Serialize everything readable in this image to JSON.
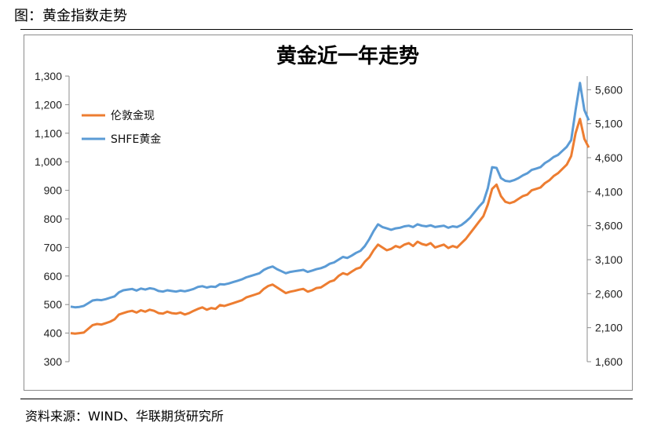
{
  "header": {
    "figure_title": "图：黄金指数走势"
  },
  "footer": {
    "source": "资料来源：WIND、华联期货研究所"
  },
  "colors": {
    "lbma": "#ed7d31",
    "shfe": "#5b9bd5",
    "axis": "#8c8c8c"
  },
  "chart_data": {
    "type": "line",
    "title": "黄金近一年走势",
    "xlabel": "",
    "ylabel_left": "",
    "ylabel_right": "",
    "grid": false,
    "legend_position": "top-left",
    "left_axis": {
      "ylim": [
        300,
        1300
      ],
      "ticks": [
        300,
        400,
        500,
        600,
        700,
        800,
        900,
        1000,
        1100,
        1200,
        1300
      ],
      "tick_labels": [
        "300",
        "400",
        "500",
        "600",
        "700",
        "800",
        "900",
        "1,000",
        "1,100",
        "1,200",
        "1,300"
      ]
    },
    "right_axis": {
      "ylim": [
        1600,
        5800
      ],
      "ticks": [
        1600,
        2100,
        2600,
        3100,
        3600,
        4100,
        4600,
        5100,
        5600
      ],
      "tick_labels": [
        "1,600",
        "2,100",
        "2,600",
        "3,100",
        "3,600",
        "4,100",
        "4,600",
        "5,100",
        "5,600"
      ]
    },
    "x_count": 119,
    "series": [
      {
        "name": "伦敦金现",
        "axis": "left",
        "values": [
          400,
          398,
          400,
          402,
          415,
          428,
          432,
          430,
          435,
          440,
          448,
          465,
          470,
          475,
          478,
          472,
          480,
          475,
          482,
          478,
          470,
          468,
          475,
          470,
          468,
          472,
          465,
          470,
          478,
          485,
          490,
          482,
          488,
          485,
          498,
          495,
          500,
          505,
          510,
          515,
          525,
          530,
          535,
          540,
          555,
          565,
          570,
          560,
          550,
          540,
          545,
          548,
          552,
          555,
          545,
          550,
          558,
          560,
          570,
          580,
          585,
          600,
          610,
          605,
          615,
          625,
          630,
          650,
          665,
          690,
          710,
          700,
          690,
          695,
          705,
          700,
          710,
          715,
          705,
          720,
          712,
          708,
          715,
          700,
          705,
          710,
          698,
          705,
          700,
          715,
          730,
          750,
          770,
          790,
          810,
          850,
          905,
          920,
          880,
          860,
          855,
          860,
          870,
          880,
          885,
          900,
          905,
          910,
          925,
          935,
          950,
          960,
          975,
          990,
          1020,
          1100,
          1150,
          1080,
          1050
        ]
      },
      {
        "name": "SHFE黄金",
        "axis": "right",
        "values": [
          2410,
          2400,
          2405,
          2420,
          2460,
          2500,
          2510,
          2505,
          2520,
          2540,
          2560,
          2620,
          2650,
          2660,
          2670,
          2645,
          2675,
          2660,
          2680,
          2670,
          2640,
          2630,
          2650,
          2640,
          2630,
          2645,
          2635,
          2650,
          2670,
          2700,
          2710,
          2690,
          2705,
          2700,
          2740,
          2735,
          2750,
          2770,
          2790,
          2810,
          2840,
          2860,
          2880,
          2900,
          2950,
          2980,
          3000,
          2960,
          2930,
          2900,
          2920,
          2930,
          2940,
          2950,
          2920,
          2940,
          2960,
          2975,
          3000,
          3040,
          3060,
          3100,
          3140,
          3125,
          3160,
          3200,
          3230,
          3300,
          3400,
          3520,
          3620,
          3580,
          3560,
          3540,
          3560,
          3570,
          3590,
          3600,
          3580,
          3620,
          3600,
          3590,
          3605,
          3580,
          3590,
          3600,
          3570,
          3590,
          3580,
          3610,
          3660,
          3720,
          3800,
          3880,
          3950,
          4150,
          4460,
          4450,
          4300,
          4260,
          4250,
          4270,
          4300,
          4340,
          4370,
          4420,
          4440,
          4460,
          4520,
          4560,
          4610,
          4640,
          4700,
          4760,
          4860,
          5300,
          5700,
          5300,
          5150
        ]
      }
    ]
  }
}
